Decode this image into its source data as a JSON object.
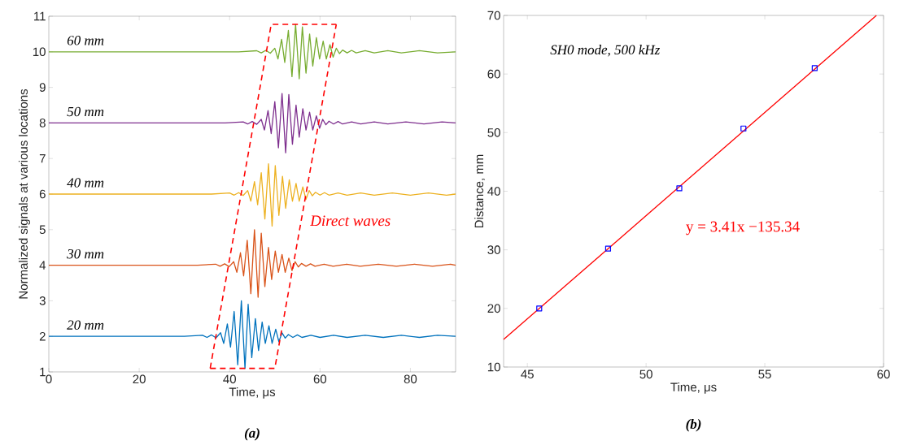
{
  "chart_data": [
    {
      "type": "line",
      "xlabel": "Time, μs",
      "ylabel": "Normalized signals at various locations",
      "xlim": [
        0,
        90
      ],
      "xticks": [
        0,
        20,
        40,
        60,
        80
      ],
      "ylim": [
        1,
        11
      ],
      "yticks": [
        1,
        2,
        3,
        4,
        5,
        6,
        7,
        8,
        9,
        10,
        11
      ],
      "annotations": [
        "Direct waves",
        "(a)"
      ],
      "series": [
        {
          "name": "*20 mm*",
          "color": "#0072bd",
          "x": [
            0,
            30,
            34,
            35,
            36,
            37,
            38,
            38.7,
            39.5,
            40.2,
            41,
            41.8,
            42.6,
            43.4,
            44.1,
            44.9,
            45.7,
            46.4,
            47.2,
            47.9,
            48.7,
            49.4,
            50.2,
            50.9,
            51.6,
            52.3,
            53,
            54,
            55,
            56,
            58,
            60,
            63,
            66,
            70,
            74,
            78,
            82,
            86,
            90
          ],
          "values": [
            2,
            2,
            2.03,
            1.97,
            2.04,
            1.96,
            2.1,
            1.8,
            2.35,
            1.7,
            2.7,
            1.2,
            3.0,
            1.1,
            2.9,
            1.4,
            2.5,
            1.6,
            2.4,
            1.8,
            2.3,
            1.8,
            2.2,
            1.85,
            2.1,
            1.95,
            2.05,
            1.97,
            2.04,
            1.97,
            2.03,
            1.97,
            2.03,
            1.97,
            2.03,
            1.97,
            2.03,
            1.97,
            2.03,
            2
          ]
        },
        {
          "name": "*30 mm*",
          "color": "#d95319",
          "x": [
            0,
            32.9,
            36.9,
            37.9,
            38.9,
            39.9,
            40.9,
            41.6,
            42.4,
            43.1,
            43.9,
            44.7,
            45.5,
            46.3,
            47,
            47.8,
            48.6,
            49.3,
            50.1,
            50.8,
            51.6,
            52.3,
            53.1,
            53.8,
            54.5,
            55.2,
            55.9,
            56.9,
            57.9,
            58.9,
            60.9,
            62.9,
            65.9,
            68.9,
            72.9,
            76.9,
            80.9,
            84.9,
            88.9,
            90
          ],
          "values": [
            4,
            4,
            4.03,
            3.97,
            4.04,
            3.96,
            4.1,
            3.8,
            4.35,
            3.7,
            4.7,
            3.2,
            5.0,
            3.1,
            4.9,
            3.4,
            4.5,
            3.6,
            4.4,
            3.8,
            4.3,
            3.8,
            4.2,
            3.85,
            4.1,
            3.95,
            4.05,
            3.97,
            4.04,
            3.97,
            4.03,
            3.97,
            4.03,
            3.97,
            4.03,
            3.97,
            4.03,
            3.97,
            4.03,
            4
          ]
        },
        {
          "name": "*40 mm*",
          "color": "#edb120",
          "x": [
            0,
            36,
            40,
            41,
            42,
            43,
            44,
            44.7,
            45.5,
            46.2,
            47,
            47.8,
            48.6,
            49.4,
            50.1,
            50.9,
            51.7,
            52.4,
            53.2,
            53.9,
            54.7,
            55.4,
            56.2,
            56.9,
            57.6,
            58.3,
            59,
            60,
            61,
            62,
            64,
            66,
            69,
            72,
            76,
            80,
            84,
            88,
            90
          ],
          "values": [
            6,
            6,
            6.03,
            5.97,
            6.04,
            5.96,
            6.1,
            5.8,
            6.35,
            5.7,
            6.6,
            5.3,
            6.85,
            5.1,
            6.8,
            5.4,
            6.5,
            5.6,
            6.4,
            5.8,
            6.3,
            5.8,
            6.2,
            5.85,
            6.1,
            5.95,
            6.05,
            5.97,
            6.04,
            5.97,
            6.03,
            5.97,
            6.03,
            5.97,
            6.03,
            5.97,
            6.03,
            5.97,
            6
          ]
        },
        {
          "name": "*50 mm*",
          "color": "#7e2f8e",
          "x": [
            0,
            39,
            43,
            44,
            45,
            46,
            47,
            47.7,
            48.5,
            49.2,
            50,
            50.8,
            51.6,
            52.4,
            53.1,
            53.9,
            54.7,
            55.4,
            56.2,
            56.9,
            57.7,
            58.4,
            59.2,
            59.9,
            60.6,
            61.3,
            62,
            63,
            64,
            65,
            67,
            69,
            72,
            75,
            79,
            83,
            87,
            90
          ],
          "values": [
            8,
            8,
            8.03,
            7.97,
            8.04,
            7.96,
            8.1,
            7.8,
            8.35,
            7.7,
            8.6,
            7.3,
            8.83,
            7.16,
            8.8,
            7.4,
            8.5,
            7.6,
            8.4,
            7.8,
            8.3,
            7.8,
            8.2,
            7.85,
            8.1,
            7.95,
            8.05,
            7.97,
            8.04,
            7.97,
            8.03,
            7.97,
            8.03,
            7.97,
            8.03,
            7.97,
            8.03,
            8
          ]
        },
        {
          "name": "*60 mm*",
          "color": "#77ac30",
          "x": [
            0,
            42,
            46,
            47,
            48,
            49,
            50,
            50.7,
            51.5,
            52.2,
            53,
            53.8,
            54.6,
            55.4,
            56.1,
            56.9,
            57.7,
            58.4,
            59.2,
            59.9,
            60.7,
            61.4,
            62.2,
            62.9,
            63.6,
            64.3,
            65,
            66,
            67,
            68,
            70,
            72,
            75,
            78,
            82,
            86,
            90
          ],
          "values": [
            10,
            10,
            10.03,
            9.97,
            10.04,
            9.96,
            10.1,
            9.8,
            10.35,
            9.7,
            10.6,
            9.3,
            10.77,
            9.24,
            10.7,
            9.4,
            10.5,
            9.6,
            10.4,
            9.8,
            10.3,
            9.8,
            10.2,
            9.85,
            10.1,
            9.95,
            10.05,
            9.97,
            10.04,
            9.97,
            10.03,
            9.97,
            10.03,
            9.97,
            10.03,
            9.97,
            10
          ]
        },
        {
          "color": "#ff0000",
          "line_style": "dashed",
          "x": [
            35.7,
            50,
            63.6
          ],
          "values": [
            1.1,
            1.1,
            10.77
          ]
        },
        {
          "color": "#ff0000",
          "line_style": "dashed",
          "x": [
            35.7,
            49.2,
            63.6
          ],
          "values": [
            1.1,
            10.77,
            10.77
          ]
        }
      ]
    },
    {
      "type": "scatter",
      "xlabel": "Time, μs",
      "ylabel": "Distance, mm",
      "xlim": [
        44,
        60
      ],
      "xticks": [
        45,
        50,
        55,
        60
      ],
      "ylim": [
        10,
        70
      ],
      "yticks": [
        10,
        20,
        30,
        40,
        50,
        60,
        70
      ],
      "annotations": [
        "SH0 mode, 500 kHz",
        "y = 3.41x −135.34",
        "(b)"
      ],
      "series": [
        {
          "type": "line",
          "color": "#ff0000",
          "x": [
            44,
            59.7
          ],
          "values": [
            14.7,
            70
          ]
        },
        {
          "type": "scatter",
          "marker": "square",
          "color": "#0000ff",
          "x": [
            45.5,
            48.4,
            51.4,
            54.1,
            57.1
          ],
          "values": [
            20,
            30.2,
            40.5,
            50.7,
            61
          ]
        }
      ]
    }
  ]
}
